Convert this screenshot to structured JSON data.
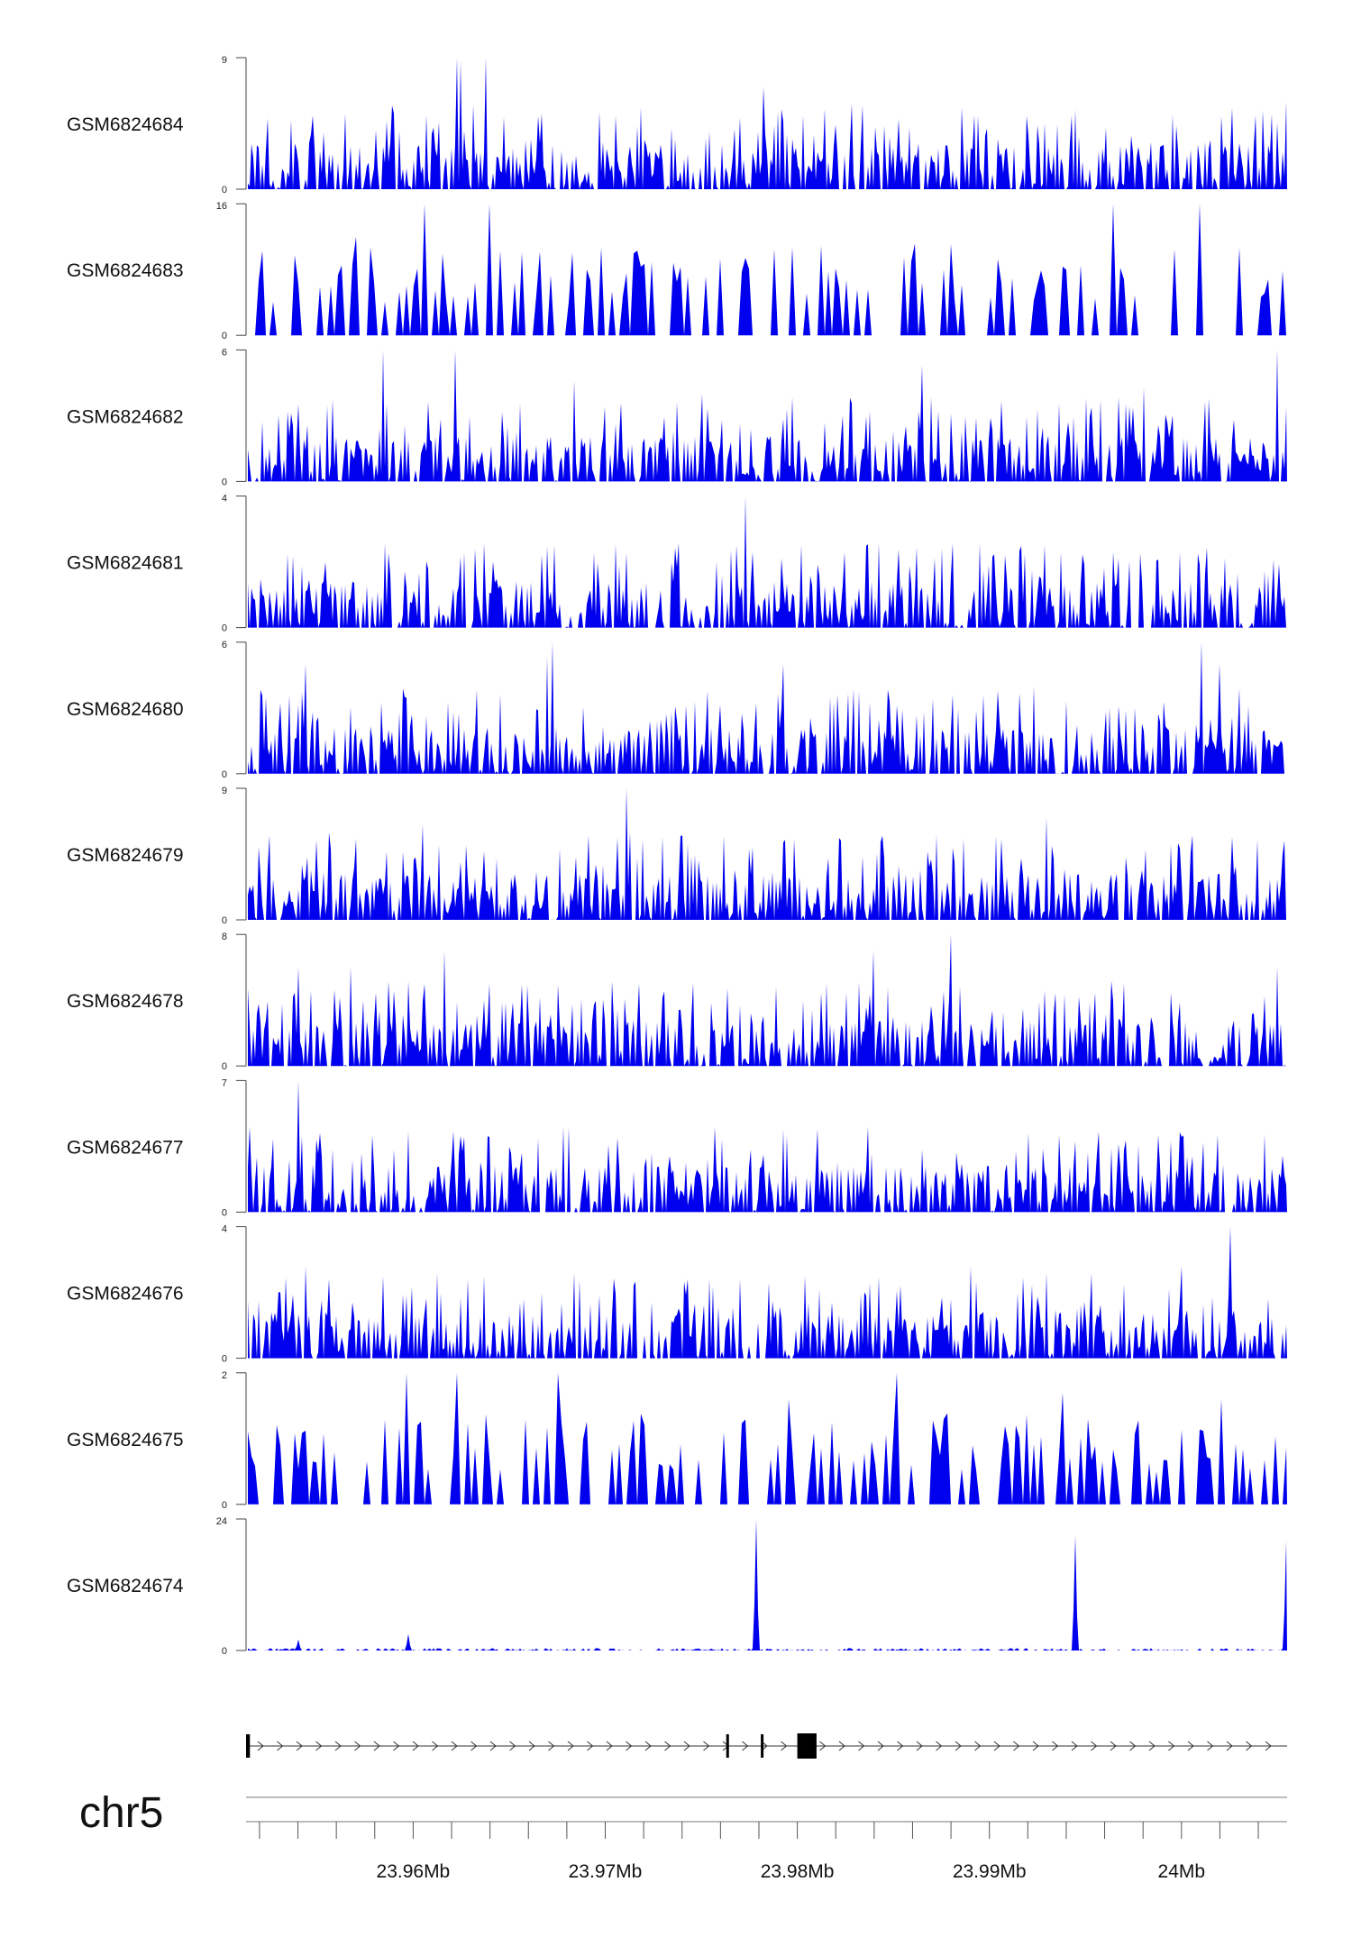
{
  "chart_data": {
    "type": "area",
    "chromosome": "chr5",
    "x_range_mb": [
      23.9513,
      24.0055
    ],
    "x_ticks": [
      {
        "value": 23.96,
        "label": "23.96Mb"
      },
      {
        "value": 23.97,
        "label": "23.97Mb"
      },
      {
        "value": 23.98,
        "label": "23.98Mb"
      },
      {
        "value": 23.99,
        "label": "23.99Mb"
      },
      {
        "value": 24.0,
        "label": "24Mb"
      }
    ],
    "minor_tick_step_mb": 0.002,
    "fill_color": "#0000ee",
    "tracks": [
      {
        "name": "GSM6824684",
        "ymin": "0",
        "ymax": "9",
        "max": 9,
        "peaks": [
          [
            23.9623,
            9
          ],
          [
            23.9625,
            8.8
          ],
          [
            23.9638,
            9
          ],
          [
            23.9782,
            7
          ],
          [
            23.9593,
            4
          ],
          [
            24.0055,
            6
          ],
          [
            23.9665,
            5
          ],
          [
            23.9705,
            5
          ]
        ]
      },
      {
        "name": "GSM6824683",
        "ymin": "0",
        "ymax": "16",
        "max": 16,
        "peaks": [
          [
            23.9605,
            16
          ],
          [
            23.964,
            16
          ],
          [
            23.957,
            12
          ],
          [
            23.9965,
            16
          ],
          [
            24.001,
            16
          ],
          [
            23.969,
            8
          ],
          [
            23.9877,
            8
          ]
        ]
      },
      {
        "name": "GSM6824682",
        "ymin": "0",
        "ymax": "6",
        "max": 6,
        "peaks": [
          [
            23.9584,
            6
          ],
          [
            23.9622,
            6
          ],
          [
            23.9865,
            5.3
          ],
          [
            24.005,
            6
          ],
          [
            23.9684,
            4.6
          ],
          [
            23.975,
            4
          ],
          [
            23.998,
            4.3
          ]
        ]
      },
      {
        "name": "GSM6824681",
        "ymin": "0",
        "ymax": "4",
        "max": 4,
        "peaks": [
          [
            23.9773,
            4
          ],
          [
            23.9768,
            2.5
          ],
          [
            23.9758,
            2
          ],
          [
            23.9707,
            1.9
          ],
          [
            23.9632,
            2.4
          ],
          [
            23.99,
            1.9
          ],
          [
            23.996,
            1.8
          ]
        ]
      },
      {
        "name": "GSM6824680",
        "ymin": "0",
        "ymax": "6",
        "max": 6,
        "peaks": [
          [
            23.9673,
            6
          ],
          [
            23.967,
            5.3
          ],
          [
            23.9923,
            4
          ],
          [
            24.001,
            6
          ],
          [
            24.002,
            5
          ],
          [
            23.9793,
            5
          ],
          [
            23.9544,
            5
          ]
        ]
      },
      {
        "name": "GSM6824679",
        "ymin": "0",
        "ymax": "9",
        "max": 9,
        "peaks": [
          [
            23.9711,
            9
          ],
          [
            23.9713,
            6
          ],
          [
            23.9605,
            6.5
          ],
          [
            23.9822,
            5.6
          ],
          [
            23.993,
            7
          ],
          [
            23.9556,
            6
          ],
          [
            24.0053,
            4.5
          ]
        ]
      },
      {
        "name": "GSM6824678",
        "ymin": "0",
        "ymax": "8",
        "max": 8,
        "peaks": [
          [
            23.988,
            8
          ],
          [
            23.984,
            7
          ],
          [
            23.9616,
            7
          ],
          [
            23.9567,
            6
          ],
          [
            23.954,
            6
          ],
          [
            24.005,
            6
          ],
          [
            23.997,
            5
          ]
        ]
      },
      {
        "name": "GSM6824677",
        "ymin": "0",
        "ymax": "7",
        "max": 7,
        "peaks": [
          [
            23.954,
            7
          ],
          [
            23.9793,
            4.4
          ],
          [
            23.964,
            4
          ],
          [
            23.9627,
            4
          ],
          [
            24.0,
            4
          ],
          [
            23.992,
            4.2
          ],
          [
            24.0053,
            3
          ]
        ]
      },
      {
        "name": "GSM6824676",
        "ymin": "0",
        "ymax": "4",
        "max": 4,
        "peaks": [
          [
            24.0025,
            4
          ],
          [
            24.0,
            2.8
          ],
          [
            23.989,
            2.8
          ],
          [
            23.9544,
            2.8
          ],
          [
            23.9637,
            2.5
          ],
          [
            23.9628,
            2.4
          ],
          [
            23.9785,
            2.3
          ]
        ]
      },
      {
        "name": "GSM6824675",
        "ymin": "0",
        "ymax": "2",
        "max": 2,
        "peaks": [
          [
            23.9596,
            2
          ],
          [
            23.9623,
            2
          ],
          [
            23.9675,
            2
          ],
          [
            23.9852,
            2
          ],
          [
            23.9795,
            1.6
          ],
          [
            23.9938,
            1.7
          ],
          [
            24.002,
            1.6
          ]
        ]
      },
      {
        "name": "GSM6824674",
        "ymin": "0",
        "ymax": "24",
        "max": 24,
        "peaks": [
          [
            23.9779,
            24
          ],
          [
            23.9945,
            21
          ],
          [
            24.0055,
            20
          ],
          [
            23.9597,
            3
          ],
          [
            23.954,
            2
          ]
        ]
      }
    ],
    "gene_model": {
      "strand": "+",
      "exons_mb": [
        [
          23.9513,
          23.9515
        ],
        [
          23.9763,
          23.9764
        ],
        [
          23.9781,
          23.9782
        ],
        [
          23.98,
          23.981
        ]
      ]
    }
  }
}
